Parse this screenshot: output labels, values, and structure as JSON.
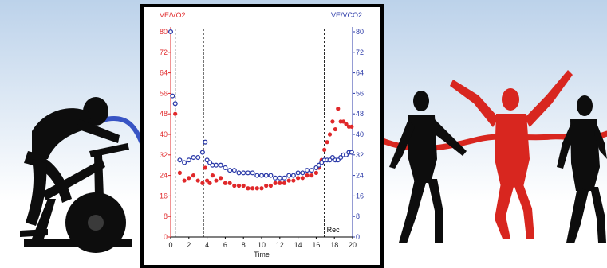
{
  "colors": {
    "ve_vo2": "#e0282a",
    "ve_vco2": "#2b3aa8",
    "runner_winner": "#d8261f",
    "silhouette": "#0d0d0d",
    "sky_top": "#bcd2ea",
    "sky_bottom": "#ffffff"
  },
  "icons": [
    "stationary-bike-rider-silhouette",
    "runner-silhouette",
    "winning-runner-silhouette",
    "finish-ribbon"
  ],
  "chart_data": {
    "type": "scatter",
    "title": "",
    "xlabel": "Time",
    "xlim": [
      0,
      20
    ],
    "x_ticks": [
      "0",
      "2",
      "4",
      "6",
      "8",
      "10",
      "12",
      "14",
      "16",
      "18",
      "20"
    ],
    "y_left": {
      "label": "VE/VO2",
      "lim": [
        0,
        80
      ],
      "ticks": [
        "0",
        "8",
        "16",
        "24",
        "32",
        "40",
        "48",
        "56",
        "64",
        "72",
        "80"
      ]
    },
    "y_right": {
      "label": "VE/VCO2",
      "lim": [
        0,
        80
      ],
      "ticks": [
        "0",
        "8",
        "16",
        "24",
        "32",
        "40",
        "48",
        "56",
        "64",
        "72",
        "80"
      ]
    },
    "vertical_lines": [
      0.5,
      3.6,
      16.9
    ],
    "annotation": "Rec",
    "grid": false,
    "series": [
      {
        "name": "VE/VO2",
        "color": "#e0282a",
        "x": [
          0,
          0.2,
          0.5,
          1,
          1.5,
          2,
          2.5,
          3,
          3.5,
          3.8,
          4,
          4.3,
          4.6,
          5,
          5.5,
          6,
          6.5,
          7,
          7.5,
          8,
          8.5,
          9,
          9.5,
          10,
          10.5,
          11,
          11.5,
          12,
          12.5,
          13,
          13.5,
          14,
          14.5,
          15,
          15.5,
          16,
          16.3,
          16.6,
          16.9,
          17.2,
          17.5,
          17.8,
          18.1,
          18.4,
          18.7,
          19,
          19.3,
          19.6,
          19.9
        ],
        "y": [
          80,
          55,
          48,
          25,
          22,
          23,
          24,
          22,
          21,
          27,
          22,
          21,
          24,
          22,
          23,
          21,
          21,
          20,
          20,
          20,
          19,
          19,
          19,
          19,
          20,
          20,
          21,
          21,
          21,
          22,
          22,
          23,
          23,
          24,
          24,
          25,
          27,
          30,
          34,
          37,
          40,
          45,
          42,
          50,
          45,
          45,
          44,
          43,
          43
        ]
      },
      {
        "name": "VE/VCO2",
        "color": "#2b3aa8",
        "x": [
          0,
          0.2,
          0.5,
          1,
          1.5,
          2,
          2.5,
          3,
          3.5,
          3.8,
          4,
          4.3,
          4.6,
          5,
          5.5,
          6,
          6.5,
          7,
          7.5,
          8,
          8.5,
          9,
          9.5,
          10,
          10.5,
          11,
          11.5,
          12,
          12.5,
          13,
          13.5,
          14,
          14.5,
          15,
          15.5,
          16,
          16.3,
          16.6,
          16.9,
          17.2,
          17.5,
          17.8,
          18.1,
          18.4,
          18.7,
          19,
          19.3,
          19.6,
          19.9
        ],
        "y": [
          80,
          55,
          52,
          30,
          29,
          30,
          31,
          31,
          33,
          37,
          30,
          29,
          28,
          28,
          28,
          27,
          26,
          26,
          25,
          25,
          25,
          25,
          24,
          24,
          24,
          24,
          23,
          23,
          23,
          24,
          24,
          25,
          25,
          26,
          26,
          27,
          28,
          29,
          30,
          30,
          30,
          31,
          30,
          30,
          31,
          32,
          32,
          33,
          33
        ]
      }
    ]
  }
}
